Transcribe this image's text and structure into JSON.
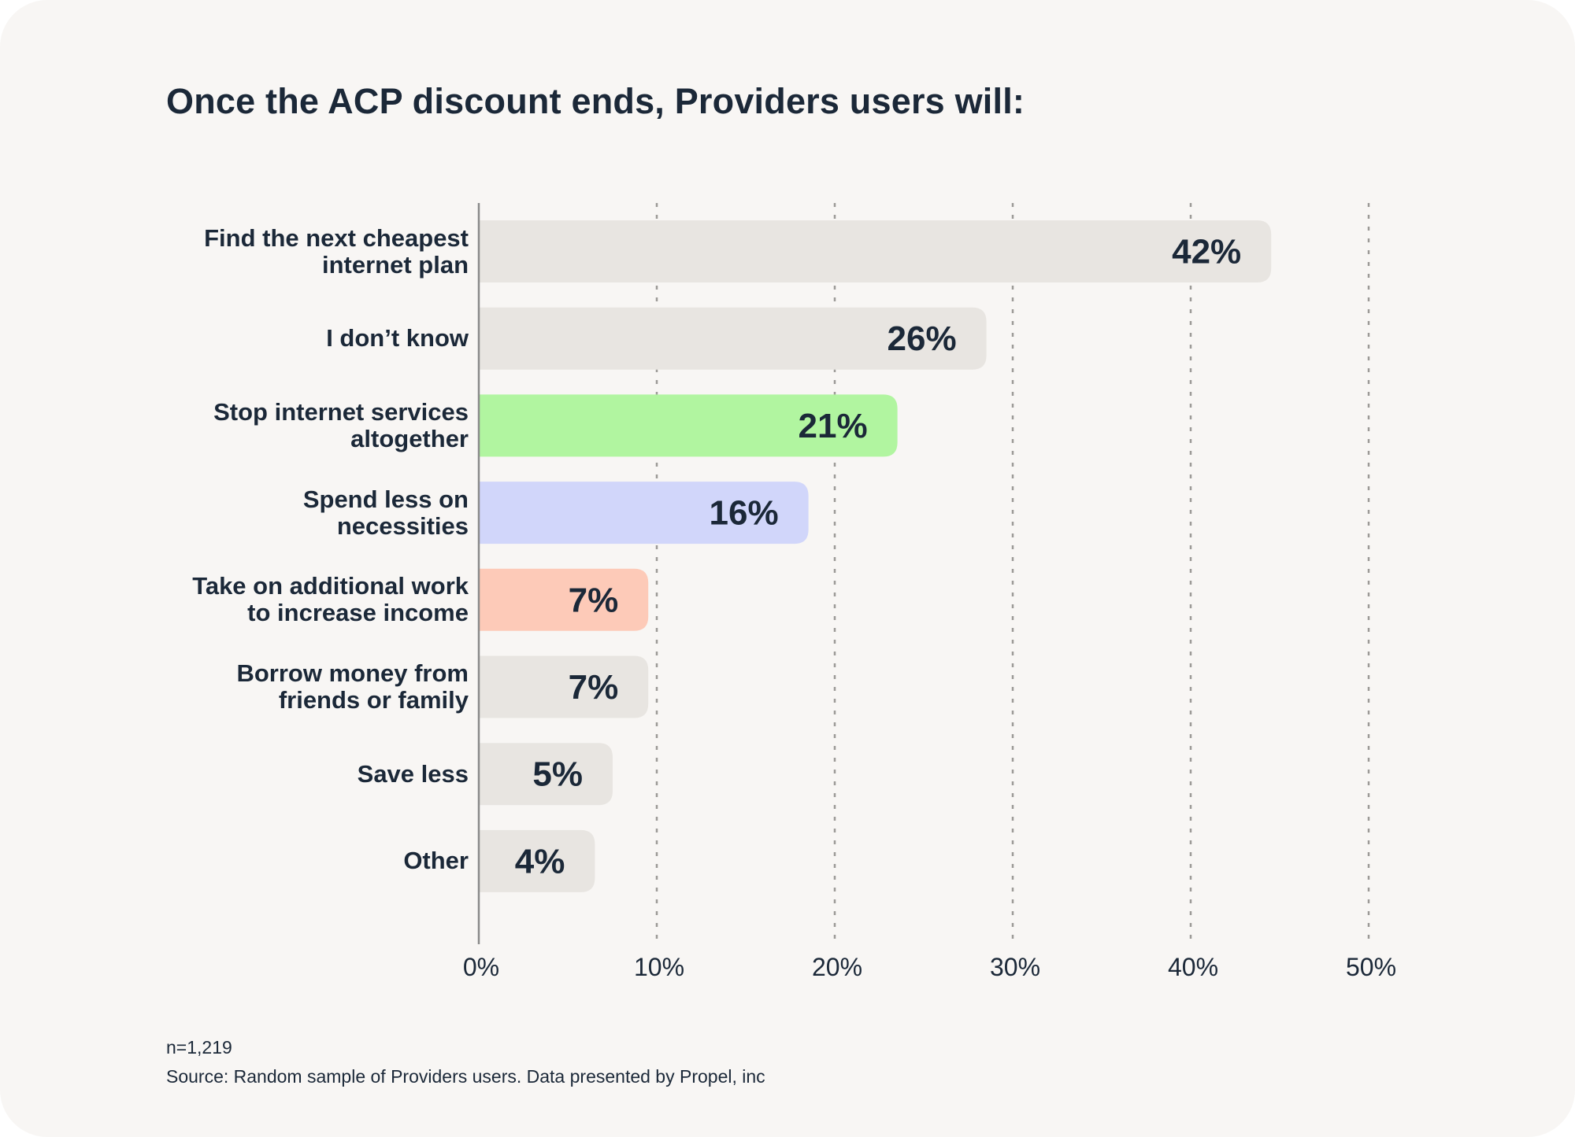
{
  "chart_data": {
    "type": "bar",
    "orientation": "horizontal",
    "title": "Once the ACP discount ends, Providers users will:",
    "categories": [
      [
        "Find the next cheapest",
        "internet plan"
      ],
      [
        "I don’t know"
      ],
      [
        "Stop internet services",
        "altogether"
      ],
      [
        "Spend less on",
        "necessities"
      ],
      [
        "Take on additional work",
        "to increase income"
      ],
      [
        "Borrow money from",
        "friends or family"
      ],
      [
        "Save less"
      ],
      [
        "Other"
      ]
    ],
    "values": [
      42,
      26,
      21,
      16,
      7,
      7,
      5,
      4
    ],
    "value_labels": [
      "42%",
      "26%",
      "21%",
      "16%",
      "7%",
      "7%",
      "5%",
      "4%"
    ],
    "bar_colors": [
      "#e8e5e1",
      "#e8e5e1",
      "#b1f5a0",
      "#d1d6fa",
      "#fdcab8",
      "#e8e5e1",
      "#e8e5e1",
      "#e8e5e1"
    ],
    "xlim": [
      0,
      50
    ],
    "xticks": [
      "0%",
      "10%",
      "20%",
      "30%",
      "40%",
      "50%"
    ],
    "grid": "vertical-dotted",
    "xlabel": "",
    "ylabel": ""
  },
  "footer": {
    "sample_size": "n=1,219",
    "source": "Source: Random sample of Providers users. Data presented by Propel, inc"
  },
  "colors": {
    "text": "#1b2838",
    "grid": "#9c9a97",
    "axis": "#8a8a8a",
    "background": "#f8f6f4"
  }
}
